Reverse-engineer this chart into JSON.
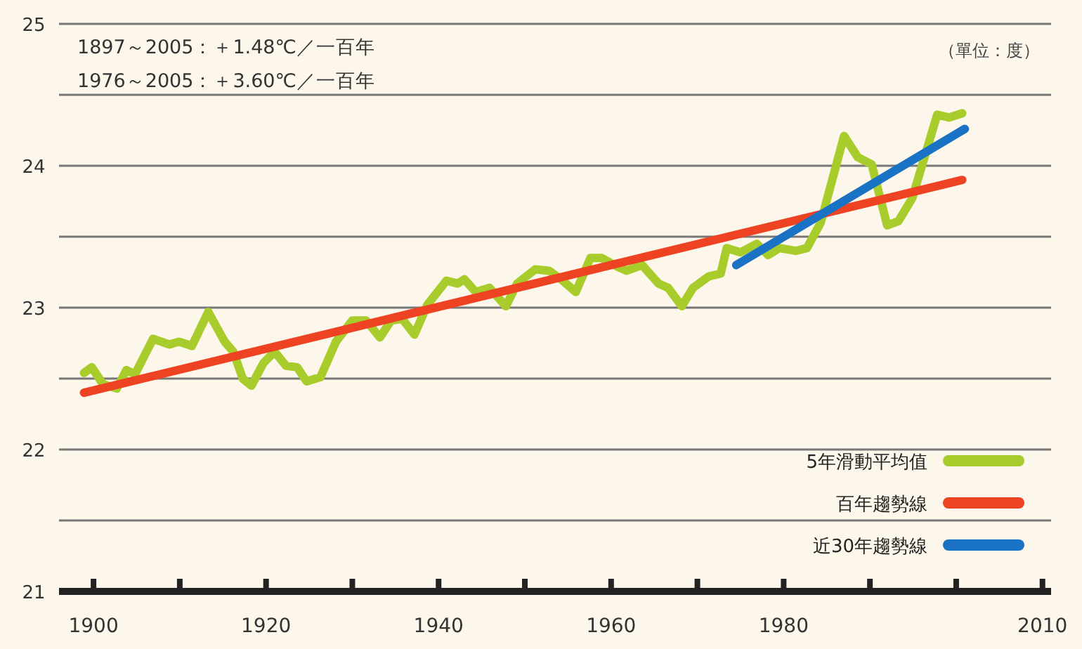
{
  "chart_data": {
    "type": "line",
    "annotations": [
      "1897～2005：＋1.48℃／一百年",
      "1976～2005：＋3.60℃／一百年",
      "（單位：度）"
    ],
    "xlim": [
      1896,
      2011
    ],
    "xticks": [
      1900,
      {
        "value": 1910,
        "label": null
      },
      1920,
      {
        "value": 1930,
        "label": null
      },
      1940,
      {
        "value": 1950,
        "label": null
      },
      1960,
      {
        "value": 1970,
        "label": null
      },
      1980,
      {
        "value": 1990,
        "label": null
      },
      {
        "value": 2000,
        "label": null
      },
      2010
    ],
    "ylim": [
      21,
      25
    ],
    "yticks": [
      21,
      {
        "value": 21.5,
        "label": null
      },
      22,
      {
        "value": 22.5,
        "label": null
      },
      23,
      {
        "value": 23.5,
        "label": null
      },
      24,
      {
        "value": 24.5,
        "label": null
      },
      25
    ],
    "grid": "y",
    "legend": "bottom right",
    "marker": "none",
    "line_style": "solid",
    "series": [
      {
        "name": "5年滑動平均值",
        "color": "#a8cc2c",
        "x": [
          1898.9,
          1899.8,
          1901.1,
          1902.7,
          1903.8,
          1904.8,
          1906.9,
          1908.8,
          1909.9,
          1911.4,
          1913.3,
          1915.2,
          1916.2,
          1917.3,
          1918.3,
          1919.7,
          1921,
          1922.3,
          1923.6,
          1924.7,
          1926.3,
          1928.1,
          1930,
          1931.6,
          1933.2,
          1934.5,
          1935.8,
          1937.2,
          1938.7,
          1940.9,
          1942.2,
          1943,
          1944.3,
          1945.9,
          1947.8,
          1949.1,
          1951.2,
          1952.8,
          1954.4,
          1955.9,
          1957.6,
          1958.9,
          1960.7,
          1961.8,
          1963.6,
          1965.5,
          1966.6,
          1968.2,
          1969.5,
          1971.3,
          1972.7,
          1973.4,
          1975,
          1976.9,
          1978.2,
          1979.5,
          1981.4,
          1982.7,
          1984.3,
          1987,
          1988.6,
          1990.2,
          1992,
          1993.3,
          1994.9,
          1997.8,
          1999.2,
          2000.7
        ],
        "values": [
          22.54,
          22.58,
          22.46,
          22.43,
          22.56,
          22.53,
          22.78,
          22.74,
          22.76,
          22.73,
          22.97,
          22.76,
          22.69,
          22.5,
          22.45,
          22.61,
          22.69,
          22.59,
          22.58,
          22.48,
          22.51,
          22.76,
          22.91,
          22.91,
          22.79,
          22.91,
          22.92,
          22.81,
          23.02,
          23.19,
          23.17,
          23.2,
          23.11,
          23.14,
          23.01,
          23.17,
          23.27,
          23.26,
          23.19,
          23.11,
          23.35,
          23.35,
          23.29,
          23.26,
          23.3,
          23.17,
          23.14,
          23.01,
          23.14,
          23.22,
          23.24,
          23.42,
          23.39,
          23.45,
          23.37,
          23.42,
          23.4,
          23.42,
          23.6,
          24.21,
          24.06,
          24.01,
          23.58,
          23.61,
          23.77,
          24.36,
          24.34,
          24.37
        ]
      },
      {
        "name": "百年趨勢線",
        "color": "#ee4323",
        "x": [
          1898.9,
          2000.7
        ],
        "values": [
          22.4,
          23.9
        ]
      },
      {
        "name": "近30年趨勢線",
        "color": "#1a72c4",
        "x": [
          1974.5,
          2001
        ],
        "values": [
          23.3,
          24.26
        ]
      }
    ]
  }
}
